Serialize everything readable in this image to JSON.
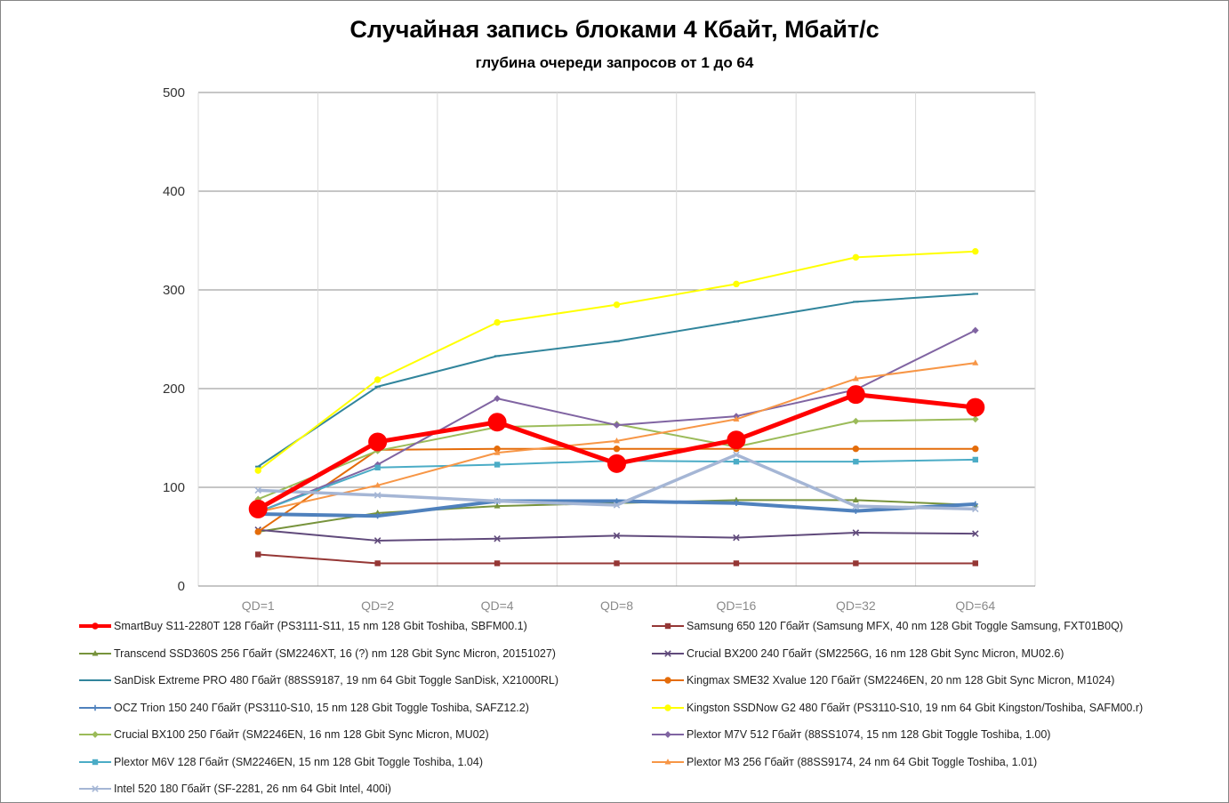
{
  "chart_data": {
    "type": "line",
    "title": "Случайная запись блоками 4 Кбайт, Мбайт/с",
    "subtitle": "глубина очереди запросов от 1 до 64",
    "categories": [
      "QD=1",
      "QD=2",
      "QD=4",
      "QD=8",
      "QD=16",
      "QD=32",
      "QD=64"
    ],
    "ylim": [
      0,
      500
    ],
    "yticks": [
      0,
      100,
      200,
      300,
      400,
      500
    ],
    "grid": true,
    "legend_position": "bottom",
    "series": [
      {
        "name": "SmartBuy S11-2280T  128  Гбайт  (PS3111-S11,  15 nm 128  Gbit Toshiba,  SBFM00.1)",
        "color": "#ff0000",
        "marker": "circle",
        "values": [
          78,
          146,
          166,
          124,
          148,
          194,
          181
        ]
      },
      {
        "name": "Samsung 650  120  Гбайт  (Samsung MFX,  40 nm 128 Gbit Toggle Samsung,  FXT01B0Q)",
        "color": "#953735",
        "marker": "square",
        "values": [
          32,
          23,
          23,
          23,
          23,
          23,
          23
        ]
      },
      {
        "name": "Transcend SSD360S  256  Гбайт  (SM2246XT,  16 (?) nm 128  Gbit Sync Micron,  20151027)",
        "color": "#77933c",
        "marker": "triangle",
        "values": [
          55,
          74,
          81,
          84,
          87,
          87,
          82
        ]
      },
      {
        "name": "Crucial BX200  240  Гбайт  (SM2256G,  16 nm 128  Gbit Sync Micron,  MU02.6)",
        "color": "#604a7b",
        "marker": "x",
        "values": [
          57,
          46,
          48,
          51,
          49,
          54,
          53
        ]
      },
      {
        "name": "SanDisk Extreme PRO 480  Гбайт  (88SS9187,  19 nm 64 Gbit Toggle SanDisk,  X21000RL)",
        "color": "#31859c",
        "marker": "dash",
        "values": [
          121,
          202,
          233,
          248,
          268,
          288,
          296
        ]
      },
      {
        "name": "Kingmax SME32  Xvalue 120 Гбайт  (SM2246EN,  20 nm 128  Gbit Sync Micron,  M1024)",
        "color": "#e46c0a",
        "marker": "circle",
        "values": [
          55,
          138,
          139,
          139,
          139,
          139,
          139
        ]
      },
      {
        "name": "OCZ Trion 150  240  Гбайт  (PS3110-S10,  15 nm 128  Gbit Toggle Toshiba,  SAFZ12.2)",
        "color": "#4f81bd",
        "marker": "plus",
        "values": [
          73,
          71,
          86,
          86,
          84,
          76,
          83
        ]
      },
      {
        "name": "Kingston SSDNow G2 480  Гбайт  (PS3110-S10,  19 nm 64  Gbit Kingston/Toshiba,  SAFM00.r)",
        "color": "#ffff00",
        "marker": "circle",
        "values": [
          117,
          209,
          267,
          285,
          306,
          333,
          339
        ]
      },
      {
        "name": "Crucial BX100  250  Гбайт  (SM2246EN,  16 nm 128  Gbit Sync Micron,  MU02)",
        "color": "#9bbb59",
        "marker": "diamond",
        "values": [
          88,
          137,
          161,
          164,
          141,
          167,
          169
        ]
      },
      {
        "name": "Plextor M7V  512  Гбайт  (88SS1074,  15 nm 128  Gbit Toggle Toshiba,  1.00)",
        "color": "#8064a2",
        "marker": "diamond",
        "values": [
          75,
          123,
          190,
          163,
          172,
          199,
          259
        ]
      },
      {
        "name": "Plextor M6V  128  Гбайт  (SM2246EN,  15 nm 128  Gbit Toggle Toshiba,  1.04)",
        "color": "#4bacc6",
        "marker": "square",
        "values": [
          75,
          120,
          123,
          127,
          126,
          126,
          128
        ]
      },
      {
        "name": "Plextor M3  256  Гбайт  (88SS9174,  24 nm 64  Gbit Toggle Toshiba,  1.01)",
        "color": "#f79646",
        "marker": "triangle",
        "values": [
          75,
          102,
          135,
          147,
          169,
          210,
          226
        ]
      },
      {
        "name": "Intel 520  180  Гбайт  (SF-2281,  26 nm 64  Gbit Intel,  400i)",
        "color": "#a5b6d5",
        "marker": "x",
        "values": [
          97,
          92,
          86,
          82,
          133,
          81,
          78
        ]
      }
    ]
  }
}
